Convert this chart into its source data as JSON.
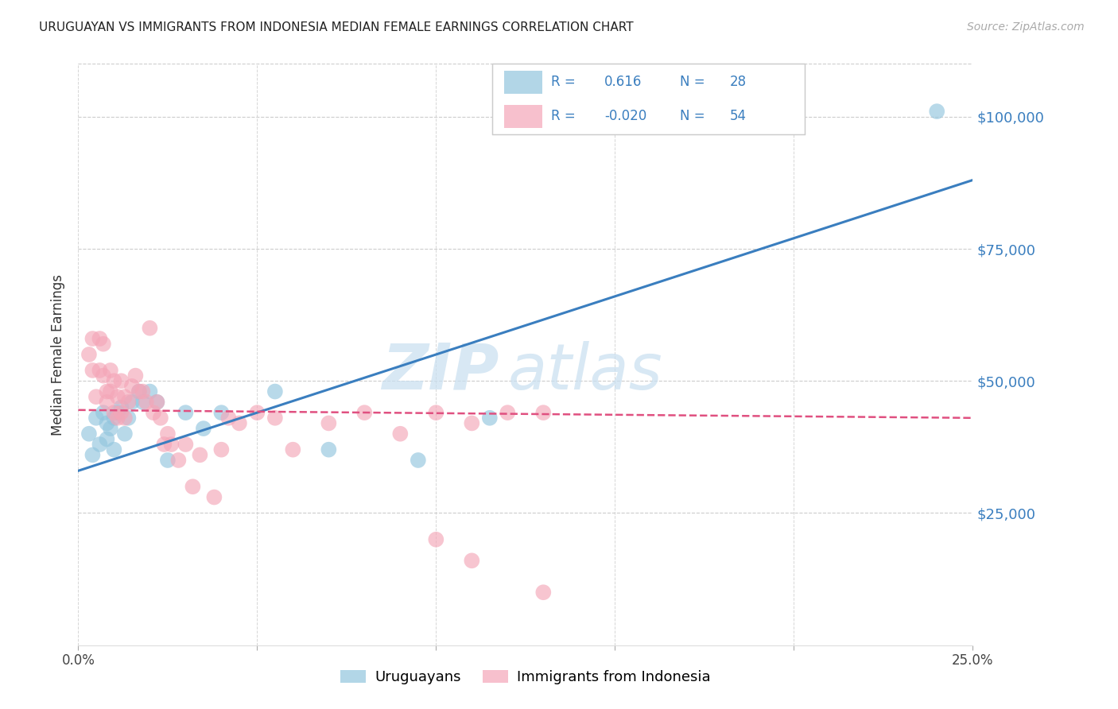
{
  "title": "URUGUAYAN VS IMMIGRANTS FROM INDONESIA MEDIAN FEMALE EARNINGS CORRELATION CHART",
  "source": "Source: ZipAtlas.com",
  "ylabel": "Median Female Earnings",
  "y_ticks": [
    0,
    25000,
    50000,
    75000,
    100000
  ],
  "y_tick_labels": [
    "",
    "$25,000",
    "$50,000",
    "$75,000",
    "$100,000"
  ],
  "x_range": [
    0.0,
    0.25
  ],
  "y_range": [
    0,
    110000
  ],
  "blue_color": "#92c5de",
  "blue_line_color": "#3a7ebf",
  "pink_color": "#f4a6b8",
  "pink_line_color": "#e05080",
  "watermark_zip": "ZIP",
  "watermark_atlas": "atlas",
  "legend_r_blue": "0.616",
  "legend_n_blue": "28",
  "legend_r_pink": "-0.020",
  "legend_n_pink": "54",
  "legend_text_color": "#3a7ebf",
  "blue_scatter_x": [
    0.003,
    0.004,
    0.005,
    0.006,
    0.007,
    0.008,
    0.008,
    0.009,
    0.01,
    0.01,
    0.011,
    0.012,
    0.013,
    0.014,
    0.015,
    0.017,
    0.018,
    0.02,
    0.022,
    0.025,
    0.03,
    0.035,
    0.04,
    0.055,
    0.07,
    0.095,
    0.115,
    0.24
  ],
  "blue_scatter_y": [
    40000,
    36000,
    43000,
    38000,
    44000,
    42000,
    39000,
    41000,
    43000,
    37000,
    44000,
    45000,
    40000,
    43000,
    46000,
    48000,
    46000,
    48000,
    46000,
    35000,
    44000,
    41000,
    44000,
    48000,
    37000,
    35000,
    43000,
    101000
  ],
  "pink_scatter_x": [
    0.003,
    0.004,
    0.004,
    0.005,
    0.006,
    0.006,
    0.007,
    0.007,
    0.008,
    0.008,
    0.009,
    0.009,
    0.01,
    0.01,
    0.011,
    0.011,
    0.012,
    0.012,
    0.013,
    0.013,
    0.014,
    0.015,
    0.016,
    0.017,
    0.018,
    0.019,
    0.02,
    0.021,
    0.022,
    0.023,
    0.024,
    0.025,
    0.026,
    0.028,
    0.03,
    0.032,
    0.034,
    0.038,
    0.04,
    0.042,
    0.045,
    0.05,
    0.055,
    0.06,
    0.07,
    0.08,
    0.09,
    0.1,
    0.11,
    0.12,
    0.13,
    0.1,
    0.11,
    0.13
  ],
  "pink_scatter_y": [
    55000,
    58000,
    52000,
    47000,
    58000,
    52000,
    57000,
    51000,
    48000,
    46000,
    52000,
    48000,
    50000,
    44000,
    47000,
    43000,
    50000,
    44000,
    47000,
    43000,
    46000,
    49000,
    51000,
    48000,
    48000,
    46000,
    60000,
    44000,
    46000,
    43000,
    38000,
    40000,
    38000,
    35000,
    38000,
    30000,
    36000,
    28000,
    37000,
    43000,
    42000,
    44000,
    43000,
    37000,
    42000,
    44000,
    40000,
    44000,
    42000,
    44000,
    44000,
    20000,
    16000,
    10000
  ],
  "blue_line_x": [
    0.0,
    0.25
  ],
  "blue_line_y": [
    33000,
    88000
  ],
  "pink_line_x": [
    0.0,
    0.25
  ],
  "pink_line_y": [
    44500,
    43000
  ],
  "background_color": "#ffffff",
  "grid_color": "#cccccc",
  "x_tick_positions": [
    0.0,
    0.05,
    0.1,
    0.15,
    0.2,
    0.25
  ]
}
